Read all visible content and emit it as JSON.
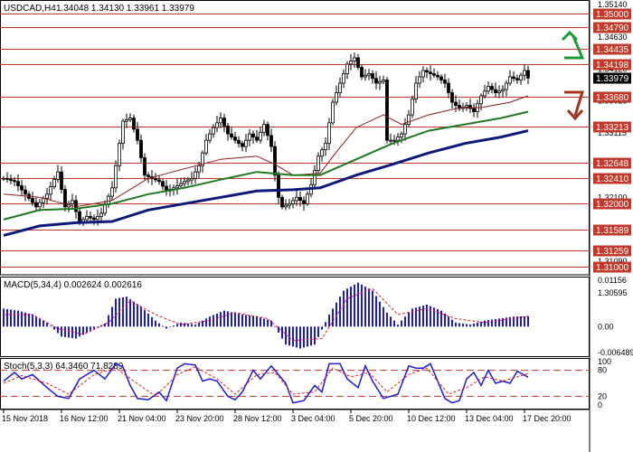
{
  "header": {
    "symbol": "USDCAD,H4",
    "ohlc": "1.34048 1.34130 1.33961 1.33979"
  },
  "colors": {
    "level": "#c0392b",
    "candle": "#000000",
    "ma_fast": "#8b1a1a",
    "ma_mid": "#1f7a1f",
    "ma_slow": "#0d1a7a",
    "macd_bar": "#1b1bd6",
    "signal": "#e02020",
    "stoch_main": "#1b1bd6",
    "stoch_signal": "#e02020",
    "arrow_up": "#1f9a3a",
    "arrow_down": "#a0341c"
  },
  "icons": {
    "up": "arrow-up-icon",
    "down": "arrow-down-icon"
  },
  "chart_data": [
    {
      "type": "candlestick",
      "symbol": "USDCAD",
      "timeframe": "H4",
      "ylim": [
        1.3095,
        1.3514
      ],
      "price_ticks": [
        "1.35140",
        "1.34630",
        "1.34120",
        "1.33625",
        "1.33115",
        "1.32605",
        "1.32100",
        "1.31590",
        "1.31090",
        "1.30595"
      ],
      "levels": [
        {
          "label": "1.35000",
          "value": 1.35
        },
        {
          "label": "1.34790",
          "value": 1.3479
        },
        {
          "label": "1.34435",
          "value": 1.34435
        },
        {
          "label": "1.34198",
          "value": 1.34198
        },
        {
          "label": "1.33680",
          "value": 1.3368
        },
        {
          "label": "1.33213",
          "value": 1.33213
        },
        {
          "label": "1.32648",
          "value": 1.32648
        },
        {
          "label": "1.32410",
          "value": 1.3241
        },
        {
          "label": "1.32000",
          "value": 1.32
        },
        {
          "label": "1.31589",
          "value": 1.31589
        },
        {
          "label": "1.31259",
          "value": 1.31259
        },
        {
          "label": "1.31000",
          "value": 1.31
        }
      ],
      "current_price": {
        "label": "1.33979",
        "value": 1.33979
      },
      "x_labels": [
        "15 Nov 2018",
        "16 Nov 12:00",
        "21 Nov 04:00",
        "23 Nov 20:00",
        "28 Nov 12:00",
        "3 Dec 04:00",
        "5 Dec 20:00",
        "10 Dec 12:00",
        "13 Dec 04:00",
        "17 Dec 20:00"
      ],
      "close_path": [
        [
          0,
          1.324
        ],
        [
          6,
          1.3235
        ],
        [
          12,
          1.3215
        ],
        [
          18,
          1.3195
        ],
        [
          24,
          1.3215
        ],
        [
          30,
          1.325
        ],
        [
          34,
          1.3195
        ],
        [
          38,
          1.3205
        ],
        [
          42,
          1.317
        ],
        [
          46,
          1.318
        ],
        [
          50,
          1.3175
        ],
        [
          54,
          1.3185
        ],
        [
          60,
          1.3225
        ],
        [
          66,
          1.333
        ],
        [
          70,
          1.3335
        ],
        [
          74,
          1.33
        ],
        [
          78,
          1.3245
        ],
        [
          82,
          1.324
        ],
        [
          86,
          1.3235
        ],
        [
          90,
          1.322
        ],
        [
          94,
          1.3225
        ],
        [
          100,
          1.3235
        ],
        [
          104,
          1.324
        ],
        [
          108,
          1.326
        ],
        [
          112,
          1.33
        ],
        [
          116,
          1.332
        ],
        [
          120,
          1.3335
        ],
        [
          124,
          1.331
        ],
        [
          128,
          1.33
        ],
        [
          132,
          1.329
        ],
        [
          136,
          1.331
        ],
        [
          140,
          1.33
        ],
        [
          144,
          1.3325
        ],
        [
          148,
          1.329
        ],
        [
          150,
          1.3245
        ],
        [
          152,
          1.321
        ],
        [
          154,
          1.3195
        ],
        [
          158,
          1.32
        ],
        [
          162,
          1.321
        ],
        [
          166,
          1.32
        ],
        [
          170,
          1.323
        ],
        [
          174,
          1.3275
        ],
        [
          178,
          1.3295
        ],
        [
          182,
          1.336
        ],
        [
          186,
          1.339
        ],
        [
          190,
          1.342
        ],
        [
          194,
          1.343
        ],
        [
          198,
          1.34
        ],
        [
          202,
          1.3405
        ],
        [
          206,
          1.339
        ],
        [
          210,
          1.3395
        ],
        [
          212,
          1.33
        ],
        [
          216,
          1.33
        ],
        [
          220,
          1.331
        ],
        [
          224,
          1.334
        ],
        [
          228,
          1.339
        ],
        [
          232,
          1.341
        ],
        [
          236,
          1.3405
        ],
        [
          240,
          1.34
        ],
        [
          244,
          1.339
        ],
        [
          248,
          1.336
        ],
        [
          252,
          1.335
        ],
        [
          256,
          1.3355
        ],
        [
          260,
          1.3345
        ],
        [
          264,
          1.337
        ],
        [
          268,
          1.3385
        ],
        [
          272,
          1.3375
        ],
        [
          276,
          1.338
        ],
        [
          280,
          1.34
        ],
        [
          284,
          1.3395
        ],
        [
          288,
          1.341
        ],
        [
          290,
          1.3398
        ]
      ],
      "moving_averages": [
        {
          "key": "ma_fast",
          "points": [
            [
              0,
              1.3215
            ],
            [
              20,
              1.321
            ],
            [
              40,
              1.3195
            ],
            [
              60,
              1.3205
            ],
            [
              80,
              1.324
            ],
            [
              100,
              1.3255
            ],
            [
              120,
              1.327
            ],
            [
              140,
              1.3275
            ],
            [
              150,
              1.3262
            ],
            [
              160,
              1.3245
            ],
            [
              175,
              1.3248
            ],
            [
              185,
              1.3285
            ],
            [
              195,
              1.332
            ],
            [
              210,
              1.334
            ],
            [
              220,
              1.3325
            ],
            [
              235,
              1.334
            ],
            [
              250,
              1.335
            ],
            [
              265,
              1.3352
            ],
            [
              280,
              1.336
            ],
            [
              290,
              1.337
            ]
          ]
        },
        {
          "key": "ma_mid",
          "points": [
            [
              0,
              1.3175
            ],
            [
              20,
              1.319
            ],
            [
              40,
              1.3192
            ],
            [
              60,
              1.32
            ],
            [
              80,
              1.3215
            ],
            [
              100,
              1.3225
            ],
            [
              120,
              1.3238
            ],
            [
              140,
              1.325
            ],
            [
              160,
              1.3245
            ],
            [
              175,
              1.3245
            ],
            [
              195,
              1.327
            ],
            [
              215,
              1.3295
            ],
            [
              235,
              1.3315
            ],
            [
              255,
              1.3325
            ],
            [
              275,
              1.3335
            ],
            [
              290,
              1.3345
            ]
          ]
        },
        {
          "key": "ma_slow",
          "points": [
            [
              0,
              1.315
            ],
            [
              20,
              1.3165
            ],
            [
              40,
              1.317
            ],
            [
              60,
              1.3172
            ],
            [
              80,
              1.319
            ],
            [
              100,
              1.32
            ],
            [
              120,
              1.321
            ],
            [
              140,
              1.322
            ],
            [
              160,
              1.3222
            ],
            [
              175,
              1.3225
            ],
            [
              195,
              1.3245
            ],
            [
              215,
              1.3262
            ],
            [
              235,
              1.328
            ],
            [
              255,
              1.3295
            ],
            [
              275,
              1.3305
            ],
            [
              290,
              1.3315
            ]
          ]
        }
      ]
    },
    {
      "type": "bar",
      "title": "MACD(5,34,4) 0.002624 0.002616",
      "ylim": [
        -0.0065,
        0.0116
      ],
      "y_ticks": [
        "0.01156",
        "0.00",
        "-0.006489"
      ],
      "bar_samples": [
        [
          0,
          0.0045
        ],
        [
          8,
          0.004
        ],
        [
          16,
          0.003
        ],
        [
          24,
          0.001
        ],
        [
          32,
          -0.0025
        ],
        [
          40,
          -0.003
        ],
        [
          48,
          -0.001
        ],
        [
          56,
          0.0008
        ],
        [
          62,
          0.007
        ],
        [
          68,
          0.0075
        ],
        [
          76,
          0.005
        ],
        [
          84,
          0.0015
        ],
        [
          90,
          -0.0005
        ],
        [
          98,
          0.001
        ],
        [
          106,
          0.0005
        ],
        [
          114,
          0.0025
        ],
        [
          122,
          0.004
        ],
        [
          132,
          0.003
        ],
        [
          140,
          0.0025
        ],
        [
          148,
          0.0015
        ],
        [
          156,
          -0.0045
        ],
        [
          164,
          -0.0055
        ],
        [
          172,
          -0.0045
        ],
        [
          180,
          0.003
        ],
        [
          188,
          0.009
        ],
        [
          196,
          0.011
        ],
        [
          204,
          0.009
        ],
        [
          212,
          0.0035
        ],
        [
          218,
          0.0005
        ],
        [
          226,
          0.0045
        ],
        [
          234,
          0.0055
        ],
        [
          242,
          0.004
        ],
        [
          250,
          0.001
        ],
        [
          258,
          0.0005
        ],
        [
          266,
          0.0015
        ],
        [
          274,
          0.002
        ],
        [
          282,
          0.0025
        ],
        [
          290,
          0.0026
        ]
      ],
      "signal_samples": [
        [
          0,
          0.003
        ],
        [
          16,
          0.003
        ],
        [
          30,
          -0.0005
        ],
        [
          44,
          -0.002
        ],
        [
          58,
          0.001
        ],
        [
          70,
          0.0065
        ],
        [
          84,
          0.003
        ],
        [
          98,
          0.0005
        ],
        [
          114,
          0.0015
        ],
        [
          128,
          0.0035
        ],
        [
          146,
          0.002
        ],
        [
          160,
          -0.0035
        ],
        [
          176,
          -0.003
        ],
        [
          190,
          0.007
        ],
        [
          204,
          0.0095
        ],
        [
          218,
          0.003
        ],
        [
          234,
          0.0045
        ],
        [
          250,
          0.002
        ],
        [
          266,
          0.001
        ],
        [
          290,
          0.0026
        ]
      ]
    },
    {
      "type": "line",
      "title": "Stoch(5,3,3) 64.3460 71.8289",
      "ylim": [
        0,
        100
      ],
      "y_ticks": [
        "100",
        "80",
        "20",
        "0"
      ],
      "reference_levels": [
        80,
        20
      ],
      "main_samples": [
        [
          0,
          55
        ],
        [
          6,
          75
        ],
        [
          10,
          60
        ],
        [
          16,
          70
        ],
        [
          24,
          40
        ],
        [
          30,
          20
        ],
        [
          36,
          15
        ],
        [
          42,
          60
        ],
        [
          50,
          80
        ],
        [
          56,
          60
        ],
        [
          62,
          95
        ],
        [
          66,
          88
        ],
        [
          70,
          45
        ],
        [
          74,
          15
        ],
        [
          80,
          12
        ],
        [
          86,
          30
        ],
        [
          90,
          10
        ],
        [
          96,
          85
        ],
        [
          100,
          95
        ],
        [
          106,
          92
        ],
        [
          110,
          55
        ],
        [
          114,
          60
        ],
        [
          118,
          55
        ],
        [
          124,
          20
        ],
        [
          128,
          12
        ],
        [
          132,
          30
        ],
        [
          138,
          80
        ],
        [
          142,
          60
        ],
        [
          148,
          90
        ],
        [
          152,
          70
        ],
        [
          156,
          50
        ],
        [
          160,
          5
        ],
        [
          166,
          10
        ],
        [
          172,
          45
        ],
        [
          176,
          30
        ],
        [
          180,
          95
        ],
        [
          186,
          95
        ],
        [
          190,
          60
        ],
        [
          196,
          40
        ],
        [
          200,
          90
        ],
        [
          204,
          55
        ],
        [
          210,
          15
        ],
        [
          218,
          25
        ],
        [
          224,
          90
        ],
        [
          228,
          85
        ],
        [
          232,
          85
        ],
        [
          236,
          95
        ],
        [
          240,
          55
        ],
        [
          244,
          15
        ],
        [
          248,
          5
        ],
        [
          252,
          10
        ],
        [
          256,
          60
        ],
        [
          260,
          75
        ],
        [
          264,
          45
        ],
        [
          268,
          80
        ],
        [
          272,
          50
        ],
        [
          276,
          55
        ],
        [
          280,
          50
        ],
        [
          284,
          78
        ],
        [
          290,
          64
        ]
      ],
      "signal_samples": [
        [
          0,
          50
        ],
        [
          10,
          68
        ],
        [
          24,
          50
        ],
        [
          36,
          25
        ],
        [
          50,
          70
        ],
        [
          62,
          85
        ],
        [
          72,
          55
        ],
        [
          84,
          20
        ],
        [
          96,
          70
        ],
        [
          106,
          88
        ],
        [
          118,
          60
        ],
        [
          128,
          25
        ],
        [
          140,
          70
        ],
        [
          150,
          75
        ],
        [
          160,
          25
        ],
        [
          172,
          30
        ],
        [
          182,
          85
        ],
        [
          192,
          65
        ],
        [
          202,
          75
        ],
        [
          212,
          30
        ],
        [
          224,
          70
        ],
        [
          234,
          85
        ],
        [
          246,
          25
        ],
        [
          256,
          40
        ],
        [
          266,
          65
        ],
        [
          276,
          55
        ],
        [
          290,
          72
        ]
      ]
    }
  ]
}
